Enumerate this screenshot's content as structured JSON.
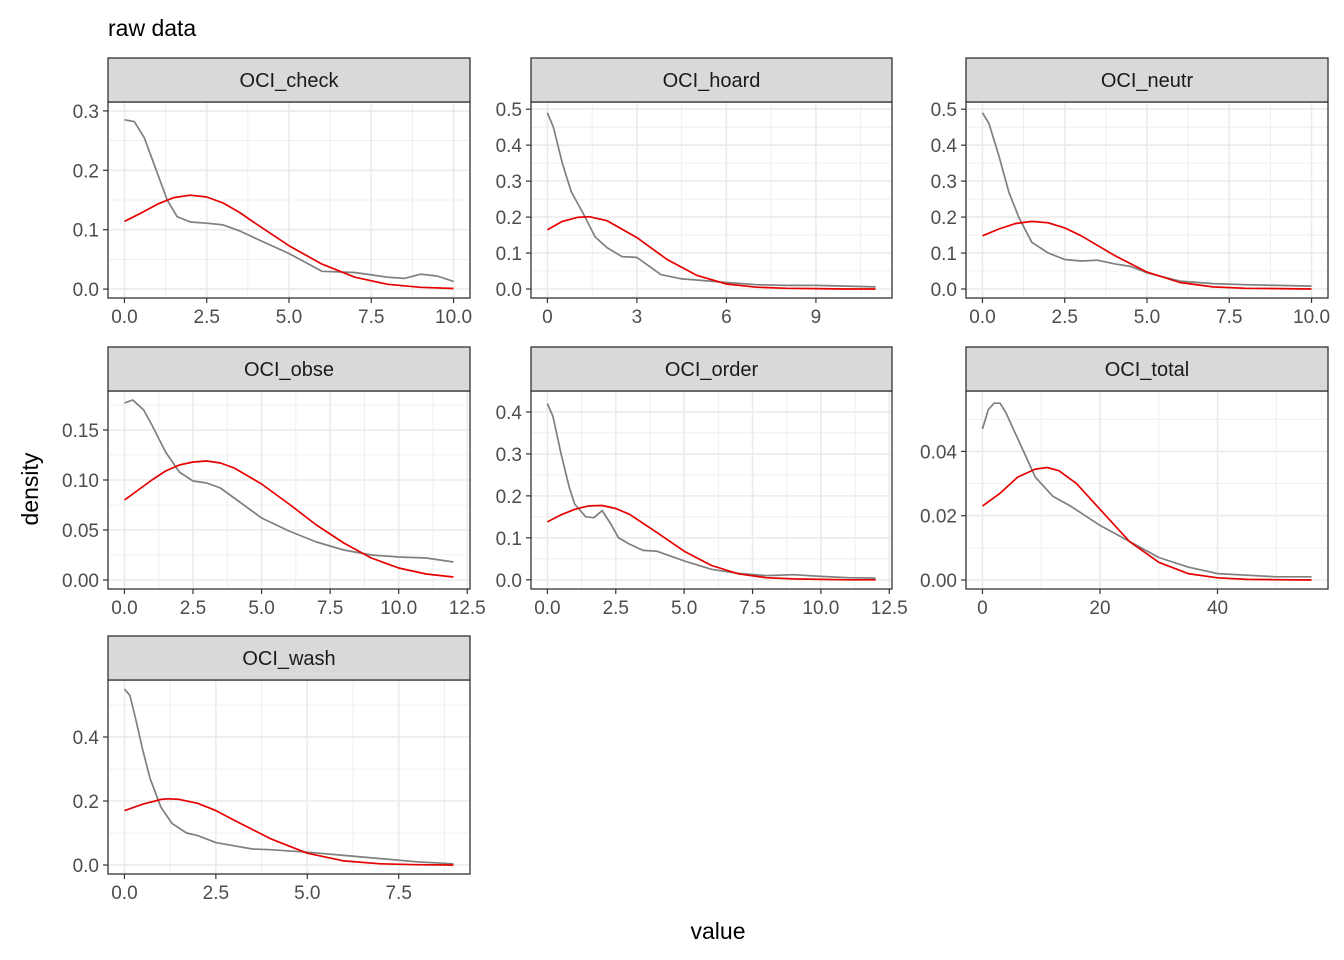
{
  "title": "raw data",
  "xlabel": "value",
  "ylabel": "density",
  "colors": {
    "raw": "#7f7f7f",
    "normal": "#e60000",
    "grid": "#ebebeb",
    "strip": "#d9d9d9",
    "border": "#333333"
  },
  "chart_data": [
    {
      "type": "line",
      "facet": "OCI_check",
      "xlim": [
        -0.5,
        10.5
      ],
      "ylim": [
        -0.015,
        0.315
      ],
      "xticks": [
        0,
        2.5,
        5,
        7.5,
        10
      ],
      "xtick_labels": [
        "0.0",
        "2.5",
        "5.0",
        "7.5",
        "10.0"
      ],
      "yticks": [
        0,
        0.1,
        0.2,
        0.3
      ],
      "ytick_labels": [
        "0.0",
        "0.1",
        "0.2",
        "0.3"
      ],
      "series": [
        {
          "x": [
            0,
            0.3,
            0.6,
            1.0,
            1.3,
            1.6,
            2.0,
            2.5,
            3.0,
            3.5,
            4.0,
            5.0,
            6.0,
            7.0,
            8.0,
            8.5,
            9.0,
            9.5,
            10.0
          ],
          "y": [
            0.285,
            0.282,
            0.255,
            0.195,
            0.15,
            0.122,
            0.113,
            0.111,
            0.108,
            0.098,
            0.085,
            0.06,
            0.03,
            0.028,
            0.02,
            0.018,
            0.025,
            0.022,
            0.013
          ]
        },
        {
          "x": [
            0,
            0.5,
            1.0,
            1.5,
            2.0,
            2.5,
            3.0,
            3.5,
            4.0,
            5.0,
            6.0,
            7.0,
            8.0,
            9.0,
            10.0
          ],
          "y": [
            0.114,
            0.128,
            0.143,
            0.154,
            0.158,
            0.155,
            0.145,
            0.129,
            0.11,
            0.073,
            0.042,
            0.02,
            0.008,
            0.003,
            0.001
          ]
        }
      ]
    },
    {
      "type": "line",
      "facet": "OCI_hoard",
      "xlim": [
        -0.55,
        11.55
      ],
      "ylim": [
        -0.025,
        0.52
      ],
      "xticks": [
        0,
        3,
        6,
        9
      ],
      "xtick_labels": [
        "0",
        "3",
        "6",
        "9"
      ],
      "yticks": [
        0,
        0.1,
        0.2,
        0.3,
        0.4,
        0.5
      ],
      "ytick_labels": [
        "0.0",
        "0.1",
        "0.2",
        "0.3",
        "0.4",
        "0.5"
      ],
      "series": [
        {
          "x": [
            0,
            0.2,
            0.5,
            0.8,
            1.2,
            1.6,
            2.0,
            2.5,
            3.0,
            3.3,
            3.8,
            4.5,
            5.0,
            6.0,
            7.0,
            8.0,
            9.0,
            10.0,
            11.0
          ],
          "y": [
            0.49,
            0.45,
            0.35,
            0.27,
            0.21,
            0.145,
            0.115,
            0.09,
            0.088,
            0.07,
            0.04,
            0.028,
            0.025,
            0.018,
            0.012,
            0.01,
            0.01,
            0.008,
            0.006
          ]
        },
        {
          "x": [
            0,
            0.5,
            1.0,
            1.4,
            2.0,
            3.0,
            4.0,
            5.0,
            6.0,
            7.0,
            8.0,
            9.0,
            10.0,
            11.0
          ],
          "y": [
            0.165,
            0.188,
            0.199,
            0.201,
            0.19,
            0.143,
            0.083,
            0.038,
            0.014,
            0.005,
            0.002,
            0.001,
            0.0,
            0.0
          ]
        }
      ]
    },
    {
      "type": "line",
      "facet": "OCI_neutr",
      "xlim": [
        -0.5,
        10.5
      ],
      "ylim": [
        -0.025,
        0.52
      ],
      "xticks": [
        0,
        2.5,
        5,
        7.5,
        10
      ],
      "xtick_labels": [
        "0.0",
        "2.5",
        "5.0",
        "7.5",
        "10.0"
      ],
      "yticks": [
        0,
        0.1,
        0.2,
        0.3,
        0.4,
        0.5
      ],
      "ytick_labels": [
        "0.0",
        "0.1",
        "0.2",
        "0.3",
        "0.4",
        "0.5"
      ],
      "series": [
        {
          "x": [
            0,
            0.2,
            0.5,
            0.8,
            1.1,
            1.5,
            2.0,
            2.5,
            3.0,
            3.5,
            4.0,
            4.5,
            5.0,
            6.0,
            7.0,
            8.0,
            9.0,
            10.0
          ],
          "y": [
            0.49,
            0.46,
            0.37,
            0.27,
            0.2,
            0.13,
            0.1,
            0.082,
            0.078,
            0.08,
            0.07,
            0.063,
            0.045,
            0.022,
            0.015,
            0.012,
            0.01,
            0.008
          ]
        },
        {
          "x": [
            0,
            0.5,
            1.0,
            1.5,
            2.0,
            2.5,
            3.0,
            4.0,
            5.0,
            6.0,
            7.0,
            8.0,
            9.0,
            10.0
          ],
          "y": [
            0.148,
            0.167,
            0.182,
            0.188,
            0.184,
            0.17,
            0.148,
            0.094,
            0.047,
            0.018,
            0.006,
            0.002,
            0.001,
            0.0
          ]
        }
      ]
    },
    {
      "type": "line",
      "facet": "OCI_obse",
      "xlim": [
        -0.6,
        12.6
      ],
      "ylim": [
        -0.009,
        0.189
      ],
      "xticks": [
        0,
        2.5,
        5,
        7.5,
        10,
        12.5
      ],
      "xtick_labels": [
        "0.0",
        "2.5",
        "5.0",
        "7.5",
        "10.0",
        "12.5"
      ],
      "yticks": [
        0,
        0.05,
        0.1,
        0.15
      ],
      "ytick_labels": [
        "0.00",
        "0.05",
        "0.10",
        "0.15"
      ],
      "series": [
        {
          "x": [
            0,
            0.3,
            0.7,
            1.0,
            1.5,
            2.0,
            2.5,
            3.0,
            3.5,
            4.0,
            5.0,
            6.0,
            7.0,
            8.0,
            9.0,
            10.0,
            11.0,
            12.0
          ],
          "y": [
            0.177,
            0.18,
            0.17,
            0.155,
            0.128,
            0.108,
            0.099,
            0.097,
            0.092,
            0.082,
            0.062,
            0.049,
            0.038,
            0.03,
            0.025,
            0.023,
            0.022,
            0.018
          ]
        },
        {
          "x": [
            0,
            0.5,
            1.0,
            1.5,
            2.0,
            2.5,
            3.0,
            3.5,
            4.0,
            5.0,
            6.0,
            7.0,
            8.0,
            9.0,
            10.0,
            11.0,
            12.0
          ],
          "y": [
            0.08,
            0.09,
            0.1,
            0.109,
            0.115,
            0.118,
            0.119,
            0.117,
            0.112,
            0.096,
            0.076,
            0.055,
            0.037,
            0.022,
            0.012,
            0.006,
            0.003
          ]
        }
      ]
    },
    {
      "type": "line",
      "facet": "OCI_order",
      "xlim": [
        -0.6,
        12.6
      ],
      "ylim": [
        -0.022,
        0.45
      ],
      "xticks": [
        0,
        2.5,
        5,
        7.5,
        10,
        12.5
      ],
      "xtick_labels": [
        "0.0",
        "2.5",
        "5.0",
        "7.5",
        "10.0",
        "12.5"
      ],
      "yticks": [
        0,
        0.1,
        0.2,
        0.3,
        0.4
      ],
      "ytick_labels": [
        "0.0",
        "0.1",
        "0.2",
        "0.3",
        "0.4"
      ],
      "series": [
        {
          "x": [
            0,
            0.2,
            0.5,
            0.8,
            1.0,
            1.4,
            1.7,
            2.0,
            2.3,
            2.6,
            3.0,
            3.5,
            4.0,
            5.0,
            6.0,
            7.0,
            8.0,
            9.0,
            10.0,
            11.0,
            12.0
          ],
          "y": [
            0.42,
            0.39,
            0.3,
            0.22,
            0.18,
            0.15,
            0.148,
            0.165,
            0.135,
            0.1,
            0.085,
            0.07,
            0.068,
            0.045,
            0.025,
            0.015,
            0.01,
            0.012,
            0.008,
            0.005,
            0.004
          ]
        },
        {
          "x": [
            0,
            0.5,
            1.0,
            1.5,
            2.0,
            2.5,
            3.0,
            4.0,
            5.0,
            6.0,
            7.0,
            8.0,
            9.0,
            10.0,
            11.0,
            12.0
          ],
          "y": [
            0.138,
            0.155,
            0.168,
            0.176,
            0.177,
            0.17,
            0.156,
            0.113,
            0.068,
            0.034,
            0.014,
            0.005,
            0.002,
            0.001,
            0.0,
            0.0
          ]
        }
      ]
    },
    {
      "type": "line",
      "facet": "OCI_total",
      "xlim": [
        -2.8,
        58.8
      ],
      "ylim": [
        -0.0028,
        0.0588
      ],
      "xticks": [
        0,
        20,
        40
      ],
      "xtick_labels": [
        "0",
        "20",
        "40"
      ],
      "yticks": [
        0,
        0.02,
        0.04
      ],
      "ytick_labels": [
        "0.00",
        "0.02",
        "0.04"
      ],
      "series": [
        {
          "x": [
            0,
            1,
            2,
            3,
            4,
            5,
            7,
            9,
            12,
            15,
            20,
            25,
            30,
            35,
            40,
            45,
            50,
            56
          ],
          "y": [
            0.047,
            0.053,
            0.055,
            0.055,
            0.052,
            0.048,
            0.04,
            0.032,
            0.026,
            0.023,
            0.017,
            0.012,
            0.007,
            0.004,
            0.002,
            0.0015,
            0.001,
            0.001
          ]
        },
        {
          "x": [
            0,
            3,
            6,
            9,
            11,
            13,
            16,
            20,
            25,
            30,
            35,
            40,
            45,
            50,
            56
          ],
          "y": [
            0.023,
            0.027,
            0.032,
            0.0345,
            0.035,
            0.034,
            0.03,
            0.022,
            0.012,
            0.0055,
            0.002,
            0.0007,
            0.0002,
            0.0001,
            0.0
          ]
        }
      ]
    },
    {
      "type": "line",
      "facet": "OCI_wash",
      "xlim": [
        -0.45,
        9.45
      ],
      "ylim": [
        -0.028,
        0.578
      ],
      "xticks": [
        0,
        2.5,
        5,
        7.5
      ],
      "xtick_labels": [
        "0.0",
        "2.5",
        "5.0",
        "7.5"
      ],
      "yticks": [
        0,
        0.2,
        0.4
      ],
      "ytick_labels": [
        "0.0",
        "0.2",
        "0.4"
      ],
      "series": [
        {
          "x": [
            0,
            0.15,
            0.3,
            0.5,
            0.7,
            1.0,
            1.3,
            1.7,
            2.0,
            2.5,
            3.0,
            3.5,
            4.0,
            5.0,
            6.0,
            7.0,
            8.0,
            9.0
          ],
          "y": [
            0.55,
            0.53,
            0.46,
            0.36,
            0.27,
            0.18,
            0.13,
            0.1,
            0.092,
            0.07,
            0.06,
            0.05,
            0.048,
            0.04,
            0.03,
            0.02,
            0.01,
            0.004
          ]
        },
        {
          "x": [
            0,
            0.5,
            1.0,
            1.2,
            1.5,
            2.0,
            2.5,
            3.0,
            4.0,
            5.0,
            6.0,
            7.0,
            8.0,
            9.0
          ],
          "y": [
            0.17,
            0.19,
            0.205,
            0.207,
            0.205,
            0.193,
            0.17,
            0.14,
            0.082,
            0.037,
            0.013,
            0.004,
            0.001,
            0.0
          ]
        }
      ]
    }
  ]
}
